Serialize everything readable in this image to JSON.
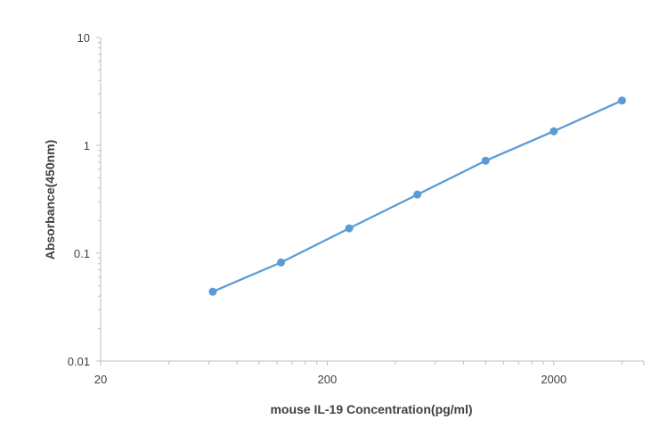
{
  "chart_data": {
    "type": "line",
    "title": "",
    "xlabel": "mouse IL-19 Concentration(pg/ml)",
    "ylabel": "Absorbance(450nm)",
    "x_scale": "log",
    "y_scale": "log",
    "xlim": [
      20,
      5000
    ],
    "ylim": [
      0.01,
      10
    ],
    "x_ticks": [
      20,
      200,
      2000
    ],
    "x_tick_labels": [
      "20",
      "200",
      "2000"
    ],
    "y_ticks": [
      0.01,
      0.1,
      1,
      10
    ],
    "y_tick_labels": [
      "0.01",
      "0.1",
      "1",
      "10"
    ],
    "grid": false,
    "legend": "none",
    "series": [
      {
        "color": "#5b9bd5",
        "x": [
          62.5,
          125,
          250,
          500,
          1000,
          2000,
          4000
        ],
        "y": [
          0.044,
          0.082,
          0.17,
          0.35,
          0.72,
          1.35,
          2.6
        ]
      }
    ]
  }
}
